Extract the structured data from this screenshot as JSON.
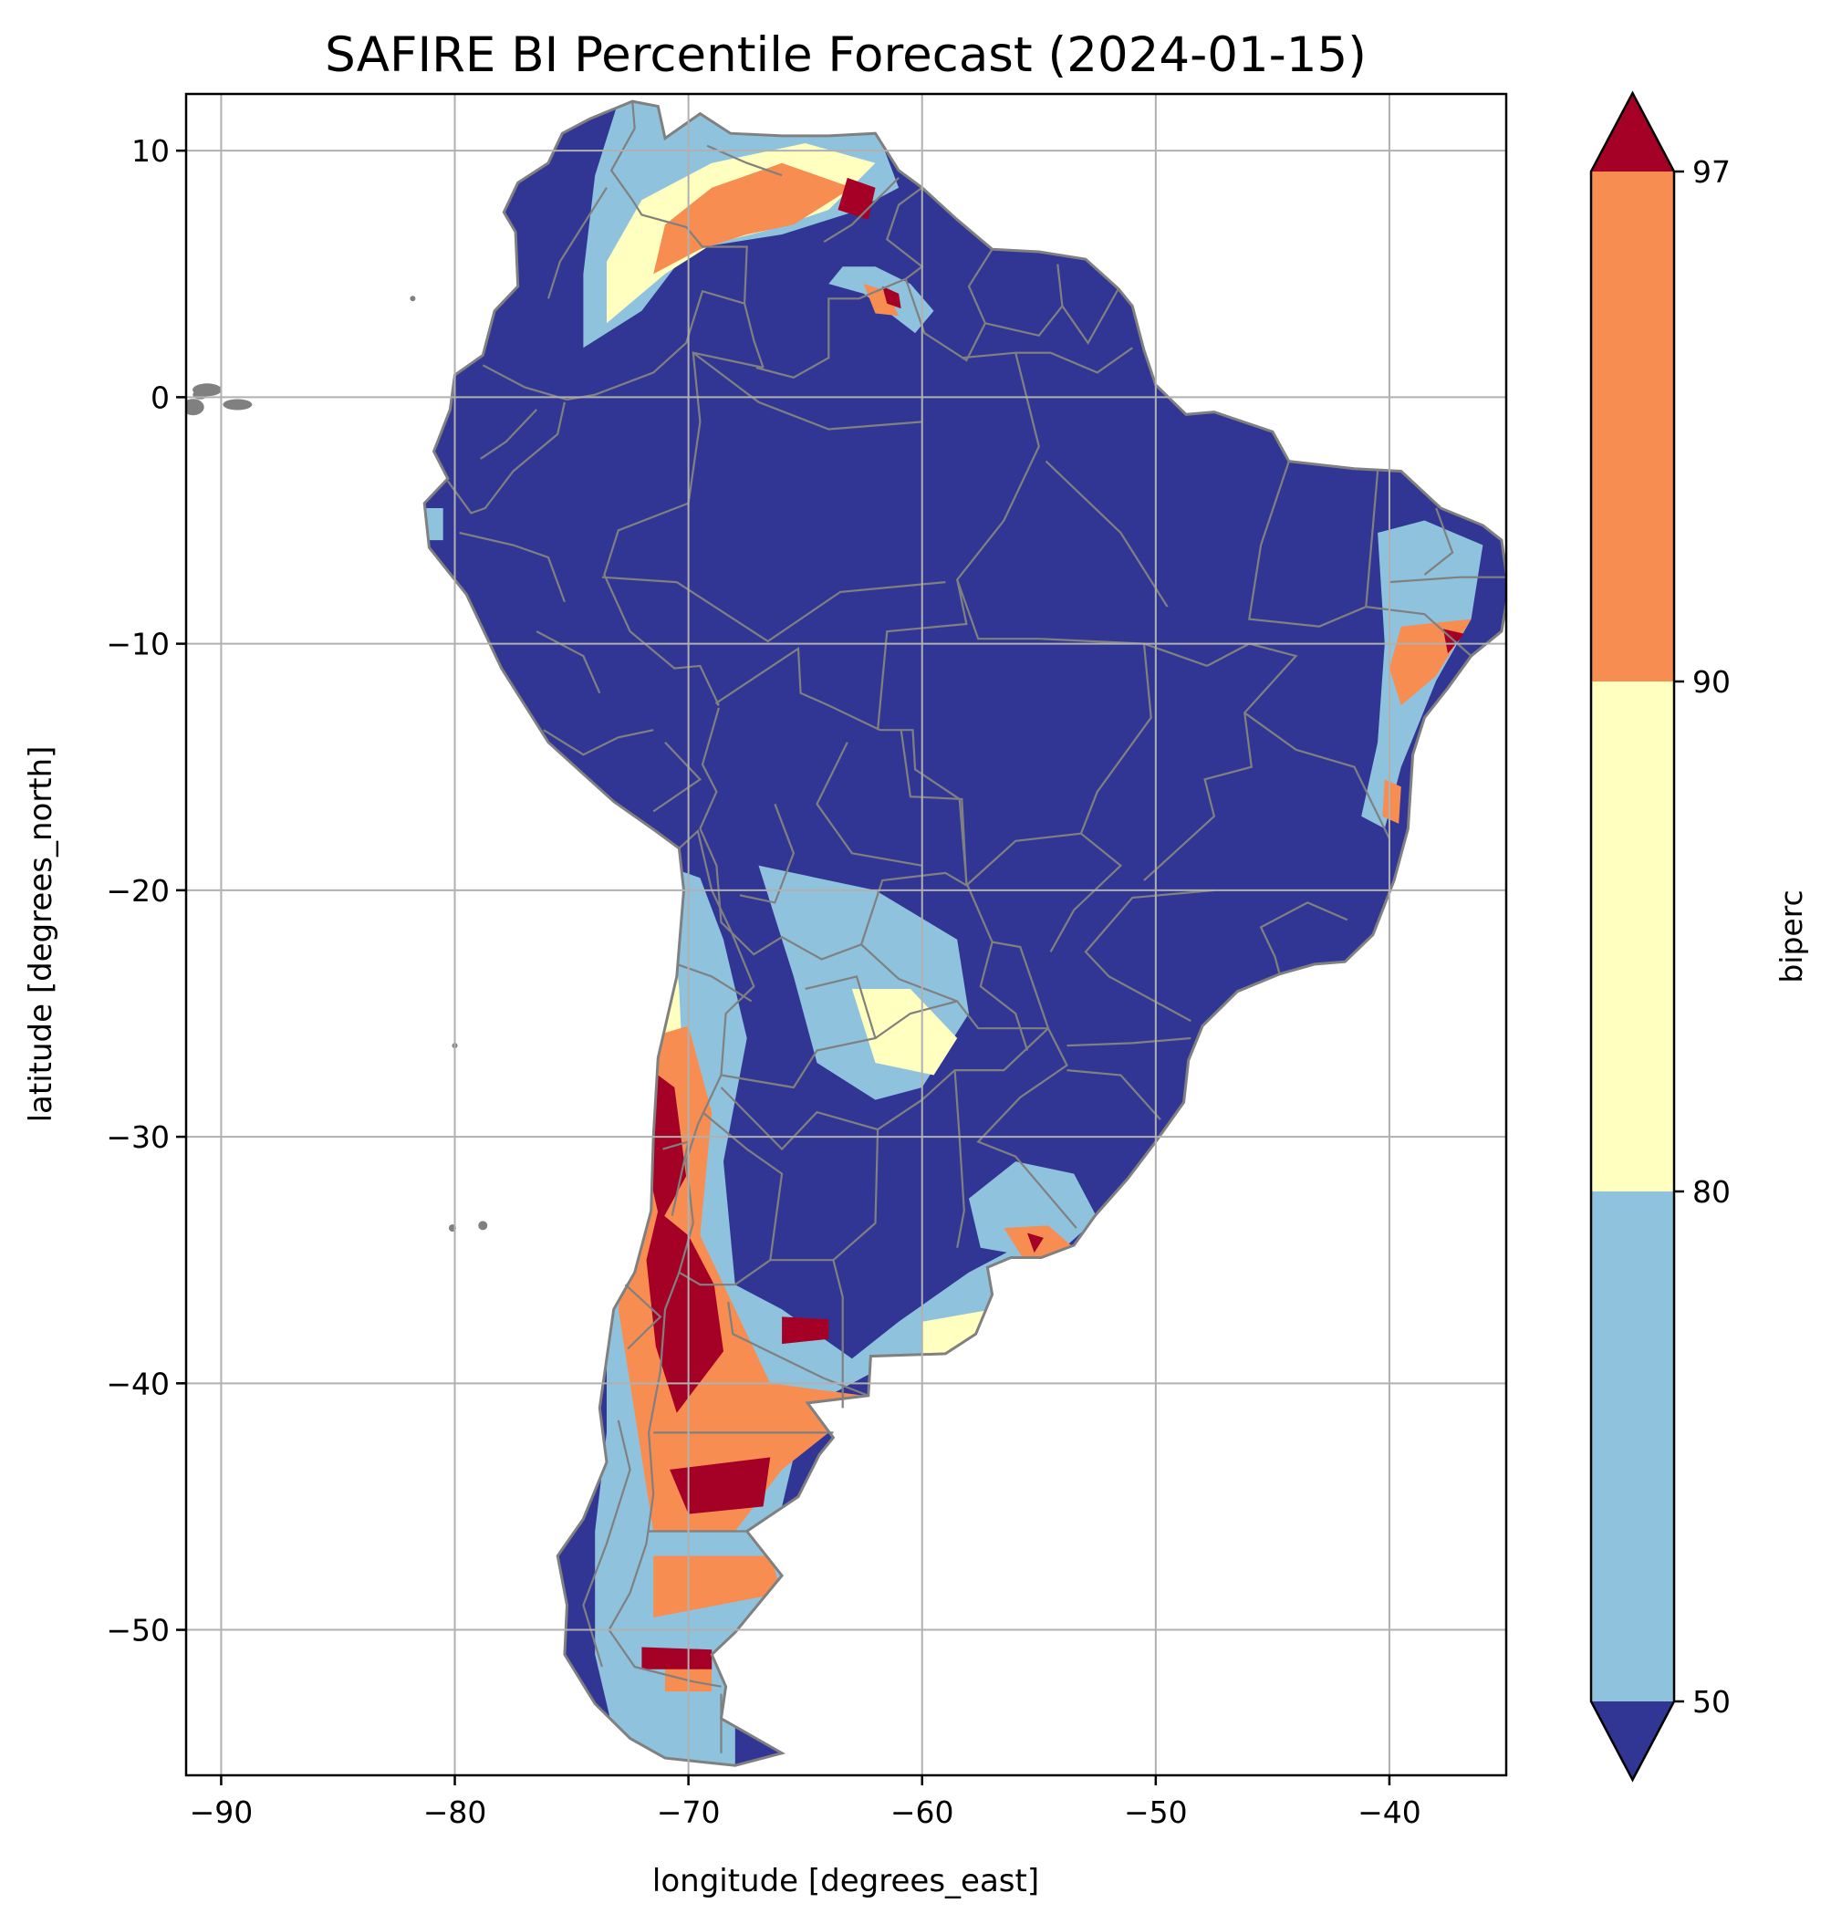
{
  "title": "SAFIRE BI Percentile Forecast (2024-01-15)",
  "map": {
    "xlabel": "longitude [degrees_east]",
    "ylabel": "latitude [degrees_north]",
    "xlim": [
      -91.5,
      -35
    ],
    "ylim": [
      -55.9,
      12.3
    ],
    "x_ticks": [
      -90,
      -80,
      -70,
      -60,
      -50,
      -40
    ],
    "y_ticks": [
      10,
      0,
      -10,
      -20,
      -30,
      -40,
      -50
    ],
    "x_tick_labels": [
      "−90",
      "−80",
      "−70",
      "−60",
      "−50",
      "−40"
    ],
    "y_tick_labels": [
      "10",
      "0",
      "−10",
      "−20",
      "−30",
      "−40",
      "−50"
    ],
    "grid": true,
    "grid_color": "#b0b0b0",
    "border_color": "#808080"
  },
  "colorbar": {
    "label": "biperc",
    "ticks": [
      50,
      80,
      90,
      97
    ],
    "tick_labels": [
      "50",
      "80",
      "90",
      "97"
    ],
    "extend": "both",
    "levels": [
      {
        "range": "<50",
        "color": "#313695"
      },
      {
        "range": "50-80",
        "color": "#8fc3dd"
      },
      {
        "range": "80-90",
        "color": "#ffffbf"
      },
      {
        "range": "90-97",
        "color": "#f88d51"
      },
      {
        "range": ">97",
        "color": "#a50026"
      }
    ]
  }
}
